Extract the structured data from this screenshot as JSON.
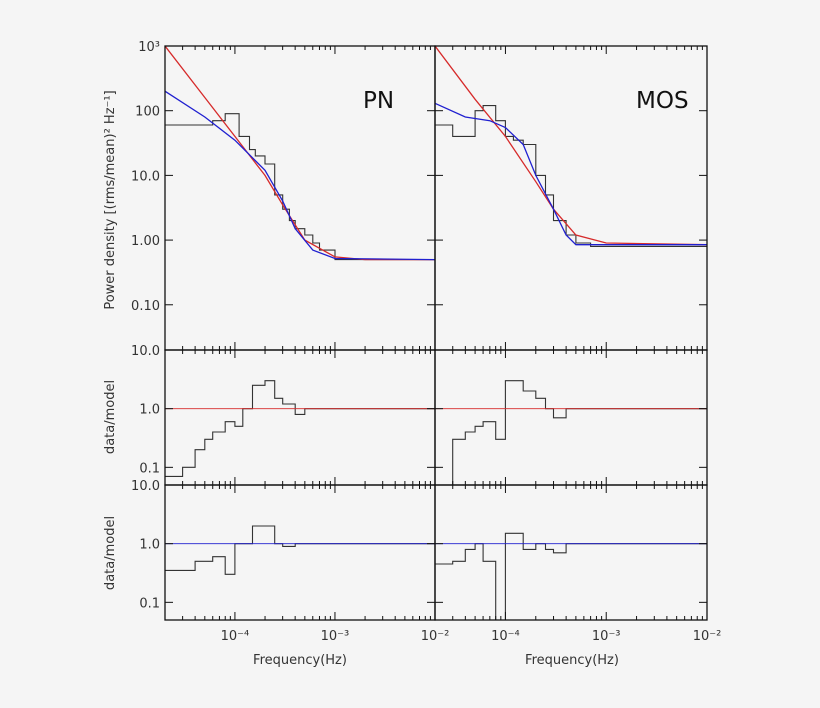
{
  "chart_data": [
    {
      "type": "line",
      "panel": "PN power spectrum",
      "label": "PN",
      "ylabel": "Power density  [(rms/mean)² Hz⁻¹]",
      "xscale": "log",
      "yscale": "log",
      "xlim": [
        2e-05,
        0.01
      ],
      "ylim": [
        0.02,
        1000
      ],
      "ytick_labels": [
        "10³",
        "100",
        "10.0",
        "1.00",
        "0.10"
      ],
      "series": [
        {
          "color": "#333333",
          "style": "step",
          "x": [
            2e-05,
            3e-05,
            6e-05,
            8e-05,
            0.00011,
            0.00014,
            0.00016,
            0.0002,
            0.00025,
            0.0003,
            0.00035,
            0.0004,
            0.0005,
            0.0006,
            0.0007,
            0.001,
            0.002,
            0.005,
            0.01
          ],
          "y": [
            60,
            60,
            70,
            90,
            40,
            25,
            20,
            15,
            5,
            3,
            2,
            1.5,
            1.2,
            0.9,
            0.7,
            0.5,
            0.5,
            0.5,
            0.5
          ]
        },
        {
          "color": "#d62a2a",
          "style": "model",
          "x": [
            2e-05,
            5e-05,
            0.0001,
            0.0002,
            0.0003,
            0.0005,
            0.001,
            0.002,
            0.01
          ],
          "y": [
            1000,
            160,
            40,
            10,
            3.5,
            1.0,
            0.55,
            0.5,
            0.5
          ]
        },
        {
          "color": "#2020d0",
          "style": "model",
          "x": [
            2e-05,
            5e-05,
            0.0001,
            0.0002,
            0.0003,
            0.0004,
            0.0006,
            0.001,
            0.01
          ],
          "y": [
            200,
            80,
            35,
            12,
            4,
            1.5,
            0.7,
            0.52,
            0.5
          ]
        }
      ]
    },
    {
      "type": "line",
      "panel": "MOS power spectrum",
      "label": "MOS",
      "xscale": "log",
      "yscale": "log",
      "xlim": [
        2e-05,
        0.01
      ],
      "ylim": [
        0.02,
        1000
      ],
      "series": [
        {
          "color": "#333333",
          "style": "step",
          "x": [
            2e-05,
            3e-05,
            5e-05,
            6e-05,
            8e-05,
            0.0001,
            0.00012,
            0.00015,
            0.0002,
            0.00025,
            0.0003,
            0.0004,
            0.0005,
            0.0007,
            0.001,
            0.002,
            0.01
          ],
          "y": [
            60,
            40,
            100,
            120,
            70,
            40,
            35,
            30,
            10,
            5,
            2,
            1.2,
            0.9,
            0.8,
            0.8,
            0.8,
            0.8
          ]
        },
        {
          "color": "#d62a2a",
          "style": "model",
          "x": [
            2e-05,
            5e-05,
            0.0001,
            0.0002,
            0.0003,
            0.0005,
            0.001,
            0.01
          ],
          "y": [
            1000,
            150,
            40,
            8,
            3,
            1.2,
            0.9,
            0.85
          ]
        },
        {
          "color": "#2020d0",
          "style": "model",
          "x": [
            2e-05,
            4e-05,
            7e-05,
            0.0001,
            0.00015,
            0.0002,
            0.0003,
            0.0004,
            0.0005,
            0.001,
            0.01
          ],
          "y": [
            130,
            80,
            70,
            55,
            30,
            10,
            3,
            1.2,
            0.85,
            0.85,
            0.85
          ]
        }
      ]
    },
    {
      "type": "line",
      "panel": "PN ratio (red model)",
      "ylabel": "data/model",
      "xscale": "log",
      "yscale": "log",
      "xlim": [
        2e-05,
        0.01
      ],
      "ylim": [
        0.05,
        10
      ],
      "ytick_labels": [
        "10.0",
        "1.0",
        "0.1"
      ],
      "series": [
        {
          "color": "#333333",
          "style": "step",
          "x": [
            2e-05,
            3e-05,
            4e-05,
            5e-05,
            6e-05,
            8e-05,
            0.0001,
            0.00012,
            0.00015,
            0.0002,
            0.00025,
            0.0003,
            0.0004,
            0.0005,
            0.0007,
            0.001,
            0.002,
            0.005,
            0.01
          ],
          "y": [
            0.07,
            0.1,
            0.2,
            0.3,
            0.4,
            0.6,
            0.5,
            1.0,
            2.5,
            3.0,
            1.5,
            1.2,
            0.8,
            1.0,
            1.0,
            1.0,
            1.0,
            1.0,
            1.0
          ]
        },
        {
          "color": "#d62a2a",
          "style": "reference",
          "x": [
            2e-05,
            0.01
          ],
          "y": [
            1.0,
            1.0
          ]
        }
      ]
    },
    {
      "type": "line",
      "panel": "MOS ratio (red model)",
      "xscale": "log",
      "yscale": "log",
      "xlim": [
        2e-05,
        0.01
      ],
      "ylim": [
        0.05,
        10
      ],
      "series": [
        {
          "color": "#333333",
          "style": "step",
          "x": [
            2e-05,
            3e-05,
            4e-05,
            5e-05,
            6e-05,
            8e-05,
            0.0001,
            0.00012,
            0.00015,
            0.0002,
            0.00025,
            0.0003,
            0.0004,
            0.0005,
            0.0007,
            0.001,
            0.002,
            0.005,
            0.01
          ],
          "y": [
            0.05,
            0.3,
            0.4,
            0.5,
            0.6,
            0.3,
            3.0,
            3.0,
            2.0,
            1.5,
            1.0,
            0.7,
            1.0,
            1.0,
            1.0,
            1.0,
            1.0,
            1.0,
            1.0
          ]
        },
        {
          "color": "#d62a2a",
          "style": "reference",
          "x": [
            2e-05,
            0.01
          ],
          "y": [
            1.0,
            1.0
          ]
        }
      ]
    },
    {
      "type": "line",
      "panel": "PN ratio (blue model)",
      "ylabel": "data/model",
      "xlabel": "Frequency(Hz)",
      "xscale": "log",
      "yscale": "log",
      "xlim": [
        2e-05,
        0.01
      ],
      "ylim": [
        0.05,
        10
      ],
      "ytick_labels": [
        "10.0",
        "1.0",
        "0.1"
      ],
      "xtick_labels": [
        "10⁻⁴",
        "10⁻³",
        "10⁻²"
      ],
      "series": [
        {
          "color": "#333333",
          "style": "step",
          "x": [
            2e-05,
            3e-05,
            4e-05,
            6e-05,
            8e-05,
            0.0001,
            0.00012,
            0.00015,
            0.0002,
            0.00025,
            0.0003,
            0.0004,
            0.0005,
            0.0007,
            0.001,
            0.002,
            0.005,
            0.01
          ],
          "y": [
            0.35,
            0.35,
            0.5,
            0.6,
            0.3,
            1.0,
            1.0,
            2.0,
            2.0,
            1.0,
            0.9,
            1.0,
            1.0,
            1.0,
            1.0,
            1.0,
            1.0,
            1.0
          ]
        },
        {
          "color": "#2020d0",
          "style": "reference",
          "x": [
            2e-05,
            0.01
          ],
          "y": [
            1.0,
            1.0
          ]
        }
      ]
    },
    {
      "type": "line",
      "panel": "MOS ratio (blue model)",
      "xlabel": "Frequency(Hz)",
      "xscale": "log",
      "yscale": "log",
      "xlim": [
        2e-05,
        0.01
      ],
      "ylim": [
        0.05,
        10
      ],
      "xtick_labels": [
        "10⁻⁴",
        "10⁻³",
        "10⁻²"
      ],
      "series": [
        {
          "color": "#333333",
          "style": "step",
          "x": [
            2e-05,
            3e-05,
            4e-05,
            5e-05,
            6e-05,
            8e-05,
            0.0001,
            0.00012,
            0.00015,
            0.0002,
            0.00025,
            0.0003,
            0.0004,
            0.0005,
            0.0007,
            0.001,
            0.002,
            0.005,
            0.01
          ],
          "y": [
            0.45,
            0.5,
            0.8,
            1.0,
            0.5,
            0.05,
            1.5,
            1.5,
            0.8,
            1.0,
            0.8,
            0.7,
            1.0,
            1.0,
            1.0,
            1.0,
            1.0,
            1.0,
            1.0
          ]
        },
        {
          "color": "#2020d0",
          "style": "reference",
          "x": [
            2e-05,
            0.01
          ],
          "y": [
            1.0,
            1.0
          ]
        }
      ]
    }
  ],
  "labels": {
    "pn": "PN",
    "mos": "MOS",
    "ylabel_top": "Power density  [(rms/mean)² Hz⁻¹]",
    "ylabel_ratio": "data/model",
    "xlabel": "Frequency(Hz)"
  }
}
